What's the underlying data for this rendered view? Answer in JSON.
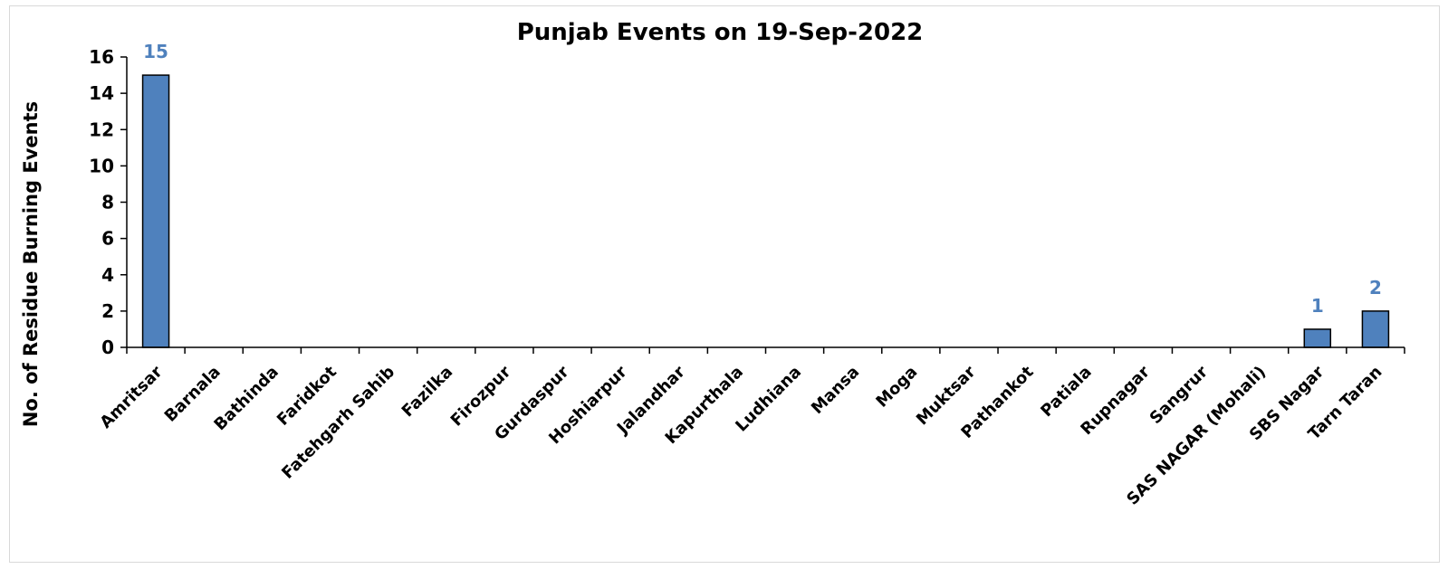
{
  "chart_data": {
    "type": "bar",
    "title": "Punjab Events on 19-Sep-2022",
    "xlabel": "",
    "ylabel": "No. of Residue Burning Events",
    "ylim": [
      0,
      16
    ],
    "yticks": [
      0,
      2,
      4,
      6,
      8,
      10,
      12,
      14,
      16
    ],
    "categories": [
      "Amritsar",
      "Barnala",
      "Bathinda",
      "Faridkot",
      "Fatehgarh Sahib",
      "Fazilka",
      "Firozpur",
      "Gurdaspur",
      "Hoshiarpur",
      "Jalandhar",
      "Kapurthala",
      "Ludhiana",
      "Mansa",
      "Moga",
      "Muktsar",
      "Pathankot",
      "Patiala",
      "Rupnagar",
      "Sangrur",
      "SAS NAGAR (Mohali)",
      "SBS Nagar",
      "Tarn Taran"
    ],
    "values": [
      15,
      0,
      0,
      0,
      0,
      0,
      0,
      0,
      0,
      0,
      0,
      0,
      0,
      0,
      0,
      0,
      0,
      0,
      0,
      0,
      1,
      2
    ],
    "data_labels_shown_for_nonzero": true,
    "grid": false,
    "legend": "none",
    "colors": {
      "bar_fill": "#4f81bd",
      "bar_stroke": "#000000",
      "data_label": "#4f81bd",
      "axis": "#000000"
    }
  }
}
